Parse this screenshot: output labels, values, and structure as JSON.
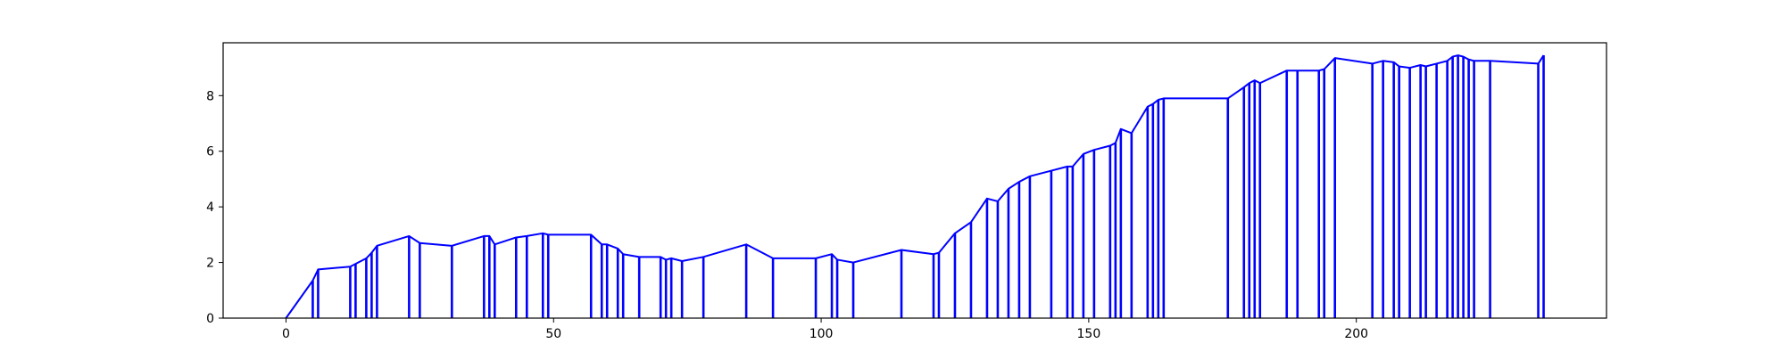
{
  "chart_data": {
    "type": "line",
    "title": "",
    "xlabel": "",
    "ylabel": "",
    "xlim": [
      -11.75,
      246.75
    ],
    "ylim": [
      0,
      9.9
    ],
    "grid": false,
    "x_ticks": [
      0,
      50,
      100,
      150,
      200
    ],
    "y_ticks": [
      0,
      2,
      4,
      6,
      8
    ],
    "x_tick_labels": [
      "0",
      "50",
      "100",
      "150",
      "200"
    ],
    "y_tick_labels": [
      "0",
      "2",
      "4",
      "6",
      "8"
    ],
    "series": [
      {
        "color": "#0000ff",
        "x": [
          0,
          5,
          6,
          12,
          13,
          15,
          16,
          17,
          23,
          25,
          31,
          37,
          38,
          39,
          43,
          45,
          48,
          49,
          57,
          59,
          60,
          62,
          63,
          66,
          70,
          71,
          72,
          74,
          78,
          86,
          91,
          99,
          102,
          103,
          106,
          115,
          121,
          122,
          125,
          128,
          131,
          133,
          135,
          137,
          139,
          143,
          146,
          147,
          149,
          151,
          154,
          155,
          156,
          158,
          161,
          162,
          163,
          164,
          176,
          179,
          180,
          181,
          182,
          187,
          189,
          193,
          194,
          196,
          203,
          205,
          207,
          208,
          210,
          212,
          213,
          215,
          217,
          218,
          219,
          220,
          221,
          222,
          225,
          234,
          235
        ],
        "y": [
          0,
          1.35,
          1.75,
          1.85,
          1.95,
          2.15,
          2.35,
          2.6,
          2.95,
          2.7,
          2.6,
          2.95,
          2.95,
          2.65,
          2.9,
          2.95,
          3.05,
          3.0,
          3.0,
          2.65,
          2.65,
          2.5,
          2.3,
          2.2,
          2.2,
          2.1,
          2.15,
          2.05,
          2.2,
          2.65,
          2.15,
          2.15,
          2.3,
          2.1,
          2.0,
          2.45,
          2.3,
          2.35,
          3.05,
          3.45,
          4.3,
          4.2,
          4.65,
          4.9,
          5.1,
          5.3,
          5.45,
          5.45,
          5.9,
          6.05,
          6.2,
          6.3,
          6.8,
          6.65,
          7.6,
          7.7,
          7.85,
          7.9,
          7.9,
          8.3,
          8.45,
          8.55,
          8.45,
          8.9,
          8.9,
          8.9,
          8.95,
          9.35,
          9.15,
          9.25,
          9.2,
          9.05,
          9.0,
          9.1,
          9.05,
          9.15,
          9.25,
          9.4,
          9.45,
          9.4,
          9.3,
          9.25,
          9.25,
          9.15,
          9.45
        ]
      }
    ]
  }
}
